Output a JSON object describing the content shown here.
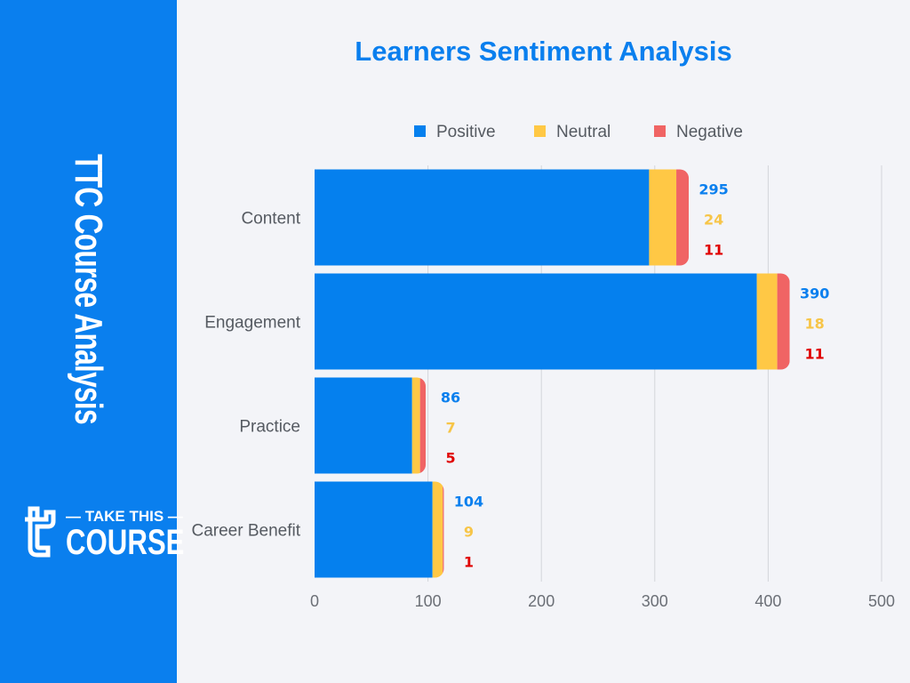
{
  "sidebar": {
    "title": "TTC Course Analysis",
    "logo_text": [
      "TAKE THIS",
      "COURSE"
    ]
  },
  "colors": {
    "positive": "#0580ee",
    "neutral": "#ffc845",
    "negative": "#f06464",
    "positive_label": "#0a7fee",
    "neutral_label": "#f7c548",
    "negative_label": "#e00000"
  },
  "chart_data": {
    "type": "bar",
    "orientation": "horizontal",
    "stacked": true,
    "title": "Learners Sentiment Analysis",
    "categories": [
      "Content",
      "Engagement",
      "Practice",
      "Career Benefit"
    ],
    "series": [
      {
        "name": "Positive",
        "values": [
          295,
          390,
          86,
          104
        ]
      },
      {
        "name": "Neutral",
        "values": [
          24,
          18,
          7,
          9
        ]
      },
      {
        "name": "Negative",
        "values": [
          11,
          11,
          5,
          1
        ]
      }
    ],
    "xlim": [
      0,
      500
    ],
    "xticks": [
      0,
      100,
      200,
      300,
      400,
      500
    ],
    "grid": true,
    "legend": "top"
  }
}
